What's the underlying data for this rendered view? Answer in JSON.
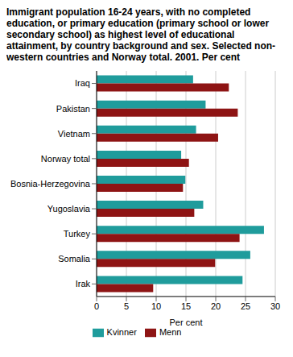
{
  "chart_data": {
    "type": "bar",
    "orientation": "horizontal",
    "title": "Immigrant population 16-24 years, with no completed education, or primary education (primary school or lower secondary school) as highest level of educational attainment, by country background and sex. Selected non-western countries and Norway total. 2001. Per cent",
    "x_label": "Per cent",
    "categories": [
      "Iraq",
      "Pakistan",
      "Vietnam",
      "Norway total",
      "Bosnia-Herzegovina",
      "Yugoslavia",
      "Turkey",
      "Somalia",
      "Irak"
    ],
    "series": [
      {
        "name": "Kvinner",
        "color": "#1f9c9c",
        "values": [
          16.2,
          18.3,
          16.7,
          14.2,
          14.9,
          17.9,
          28.1,
          25.8,
          24.5
        ]
      },
      {
        "name": "Menn",
        "color": "#8e1414",
        "values": [
          22.2,
          23.7,
          20.4,
          15.5,
          14.5,
          16.4,
          24.0,
          19.9,
          9.5
        ]
      }
    ],
    "xlim": [
      0,
      30
    ],
    "xticks": [
      0,
      5,
      10,
      15,
      20,
      25,
      30
    ],
    "grid": true,
    "legend": "bottom"
  }
}
